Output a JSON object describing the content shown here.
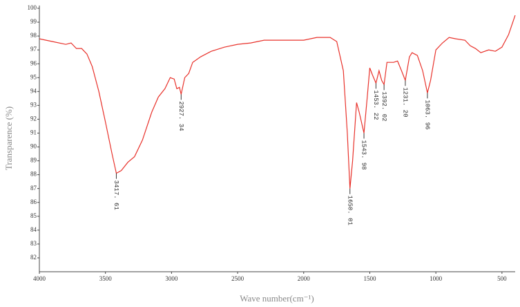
{
  "chart_data": {
    "type": "line",
    "x_label": "Wave number(cm⁻¹)",
    "y_label": "Transparence (%)",
    "xlim": [
      4000,
      400
    ],
    "xticks": [
      4000,
      3500,
      3000,
      2500,
      2000,
      1500,
      1000,
      500
    ],
    "ylim": [
      81,
      100.2
    ],
    "yticks": [
      82,
      83,
      84,
      85,
      86,
      87,
      88,
      89,
      90,
      91,
      92,
      93,
      94,
      95,
      96,
      97,
      98,
      99,
      100
    ],
    "series": [
      {
        "color": "#e8312a",
        "x": [
          4000,
          3900,
          3800,
          3760,
          3720,
          3680,
          3640,
          3600,
          3550,
          3500,
          3450,
          3417.61,
          3380,
          3330,
          3280,
          3220,
          3150,
          3100,
          3050,
          3010,
          2980,
          2960,
          2940,
          2927.34,
          2900,
          2870,
          2840,
          2780,
          2700,
          2600,
          2500,
          2400,
          2350,
          2300,
          2250,
          2000,
          1900,
          1800,
          1750,
          1700,
          1670,
          1650.01,
          1630,
          1600,
          1580,
          1543.98,
          1520,
          1500,
          1480,
          1453.22,
          1430,
          1410,
          1392.02,
          1370,
          1320,
          1290,
          1260,
          1231.2,
          1200,
          1180,
          1140,
          1100,
          1063.96,
          1040,
          1000,
          950,
          900,
          850,
          780,
          740,
          700,
          660,
          600,
          550,
          500,
          450,
          400
        ],
        "values": [
          97.8,
          97.6,
          97.4,
          97.5,
          97.1,
          97.1,
          96.7,
          95.8,
          94,
          91.8,
          89.5,
          88.1,
          88.3,
          88.9,
          89.3,
          90.5,
          92.5,
          93.6,
          94.2,
          95.0,
          94.9,
          94.2,
          94.3,
          93.8,
          95,
          95.3,
          96.1,
          96.5,
          96.9,
          97.2,
          97.4,
          97.5,
          97.6,
          97.7,
          97.7,
          97.7,
          97.9,
          97.9,
          97.6,
          95.5,
          91,
          87,
          89,
          93.2,
          92.5,
          91,
          93.5,
          95.7,
          95.2,
          94.6,
          95.5,
          94.8,
          94.5,
          96.1,
          96.1,
          96.2,
          95.5,
          94.8,
          96.5,
          96.8,
          96.6,
          95.5,
          93.9,
          94.8,
          97,
          97.5,
          97.9,
          97.8,
          97.7,
          97.3,
          97.1,
          96.8,
          97,
          96.9,
          97.2,
          98.1,
          99.5
        ]
      }
    ],
    "annotations": [
      {
        "x": 3417.61,
        "label": "3417. 61"
      },
      {
        "x": 2927.34,
        "label": "2927. 34"
      },
      {
        "x": 1650.01,
        "label": "1650. 01"
      },
      {
        "x": 1543.98,
        "label": "1543. 98"
      },
      {
        "x": 1453.22,
        "label": "1453. 22"
      },
      {
        "x": 1392.02,
        "label": "1392. 02"
      },
      {
        "x": 1231.2,
        "label": "1231. 20"
      },
      {
        "x": 1063.96,
        "label": "1063. 96"
      }
    ]
  }
}
